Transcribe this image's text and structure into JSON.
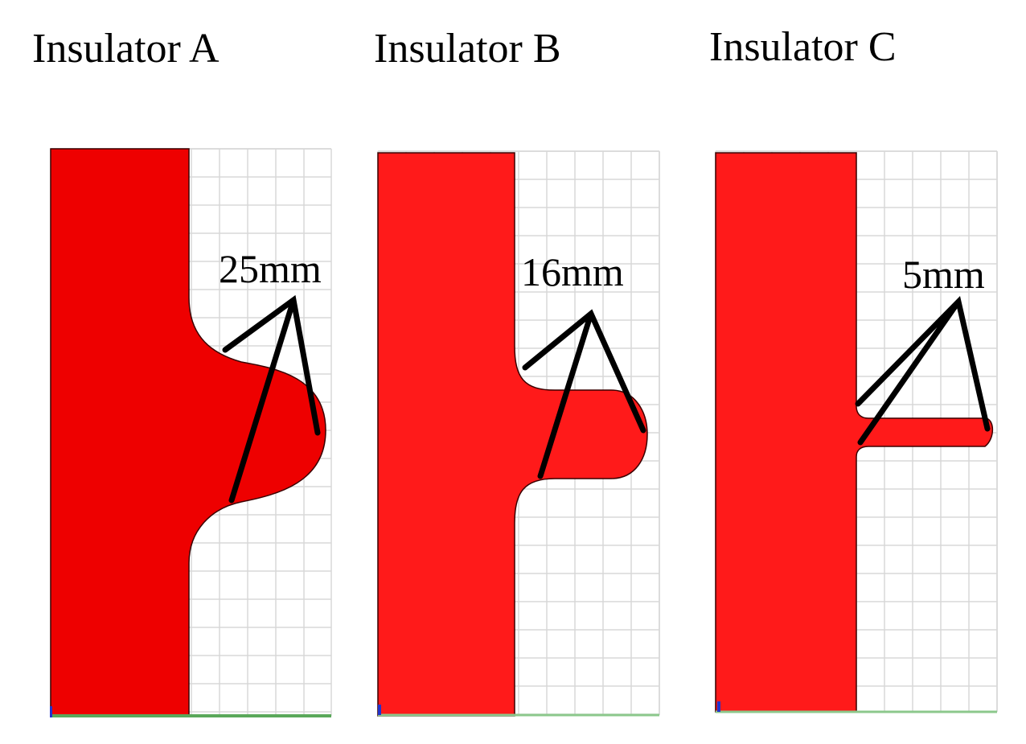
{
  "panels": [
    {
      "title": "Insulator A",
      "label": "25mm"
    },
    {
      "title": "Insulator B",
      "label": "16mm"
    },
    {
      "title": "Insulator C",
      "label": "5mm"
    }
  ]
}
